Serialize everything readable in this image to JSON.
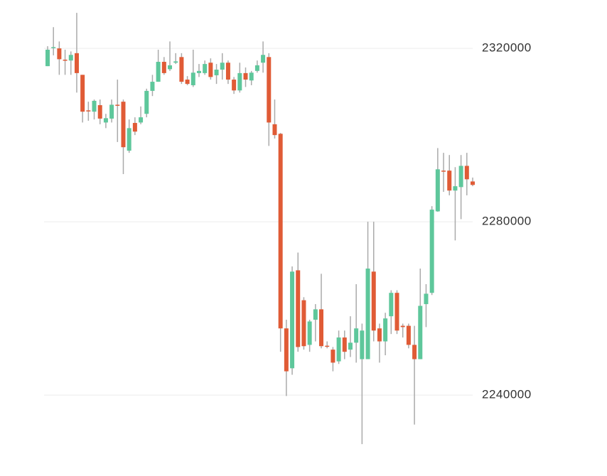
{
  "chart_data": {
    "type": "candlestick",
    "up_color": "#5ec79b",
    "down_color": "#e05b36",
    "wick_color": "#aaaaaa",
    "ylim": [
      2222000,
      2331000
    ],
    "yticks": [
      2240000,
      2280000,
      2320000
    ],
    "grid": true,
    "open": [
      2315900,
      2320200,
      2320000,
      2317400,
      2317200,
      2318900,
      2313900,
      2305700,
      2305400,
      2306900,
      2302900,
      2303800,
      2307000,
      2307700,
      2296400,
      2302800,
      2302900,
      2304900,
      2310200,
      2312300,
      2316900,
      2315200,
      2316700,
      2318000,
      2312800,
      2311500,
      2314300,
      2314300,
      2316700,
      2313800,
      2315100,
      2316700,
      2312800,
      2310300,
      2314300,
      2312600,
      2314800,
      2316700,
      2318000,
      2302500,
      2300300,
      2255400,
      2246200,
      2268800,
      2261900,
      2251600,
      2257400,
      2259800,
      2251400,
      2250500,
      2247800,
      2253300,
      2250500,
      2252100,
      2248300,
      2248300,
      2268500,
      2255400,
      2252400,
      2258200,
      2263600,
      2256000,
      2256000,
      2251600,
      2248300,
      2261000,
      2263600,
      2282400,
      2291800,
      2291800,
      2287200,
      2288000,
      2292900,
      2289300
    ],
    "high": [
      2320500,
      2324900,
      2321600,
      2319700,
      2319300,
      2328200,
      2313900,
      2307700,
      2308200,
      2308200,
      2304900,
      2308200,
      2312800,
      2308200,
      2303600,
      2304100,
      2306600,
      2310700,
      2313900,
      2319700,
      2318000,
      2321600,
      2318900,
      2318900,
      2313600,
      2319700,
      2316400,
      2317200,
      2317700,
      2316400,
      2318900,
      2317200,
      2313400,
      2316700,
      2315600,
      2314800,
      2317200,
      2321600,
      2318900,
      2308200,
      2300500,
      2257400,
      2269700,
      2272900,
      2262600,
      2257400,
      2261000,
      2268000,
      2252400,
      2251100,
      2254900,
      2254900,
      2258200,
      2265600,
      2256500,
      2280000,
      2280000,
      2256500,
      2259000,
      2264200,
      2264200,
      2256500,
      2256500,
      2256000,
      2269200,
      2265600,
      2283600,
      2297000,
      2295900,
      2295400,
      2292600,
      2295400,
      2295900,
      2290200
    ],
    "low": [
      2315900,
      2318400,
      2313900,
      2313900,
      2313900,
      2309800,
      2302900,
      2303300,
      2303600,
      2302500,
      2301600,
      2302900,
      2298400,
      2291000,
      2295900,
      2300000,
      2302500,
      2304100,
      2309000,
      2312300,
      2313900,
      2314800,
      2316400,
      2311800,
      2311500,
      2311100,
      2313400,
      2313900,
      2312800,
      2311800,
      2312800,
      2311800,
      2309500,
      2309800,
      2311100,
      2311500,
      2314400,
      2314400,
      2297500,
      2299200,
      2250000,
      2239800,
      2244700,
      2250000,
      2250500,
      2250000,
      2252400,
      2250800,
      2250800,
      2245500,
      2247200,
      2248300,
      2248800,
      2247500,
      2228700,
      2248300,
      2252400,
      2247500,
      2249200,
      2254100,
      2254100,
      2253300,
      2250800,
      2233200,
      2248300,
      2255700,
      2263100,
      2282300,
      2286900,
      2286100,
      2275700,
      2280600,
      2286100,
      2288200
    ],
    "close": [
      2319700,
      2320300,
      2317500,
      2317200,
      2318500,
      2314300,
      2305400,
      2305600,
      2307900,
      2303800,
      2303900,
      2307000,
      2306900,
      2297200,
      2301600,
      2300800,
      2304100,
      2310200,
      2312300,
      2316900,
      2314300,
      2316100,
      2317000,
      2312300,
      2311800,
      2314400,
      2314800,
      2316400,
      2313400,
      2315100,
      2316700,
      2312800,
      2310300,
      2314300,
      2312800,
      2314400,
      2316100,
      2318500,
      2302900,
      2300000,
      2255400,
      2245500,
      2268500,
      2251100,
      2251300,
      2257000,
      2259800,
      2251300,
      2251300,
      2247500,
      2253300,
      2250000,
      2252100,
      2255400,
      2254900,
      2269200,
      2254900,
      2252400,
      2257700,
      2263600,
      2254900,
      2255700,
      2251600,
      2248300,
      2260600,
      2263400,
      2282800,
      2292100,
      2291600,
      2287200,
      2288200,
      2292900,
      2289800,
      2288500
    ]
  }
}
